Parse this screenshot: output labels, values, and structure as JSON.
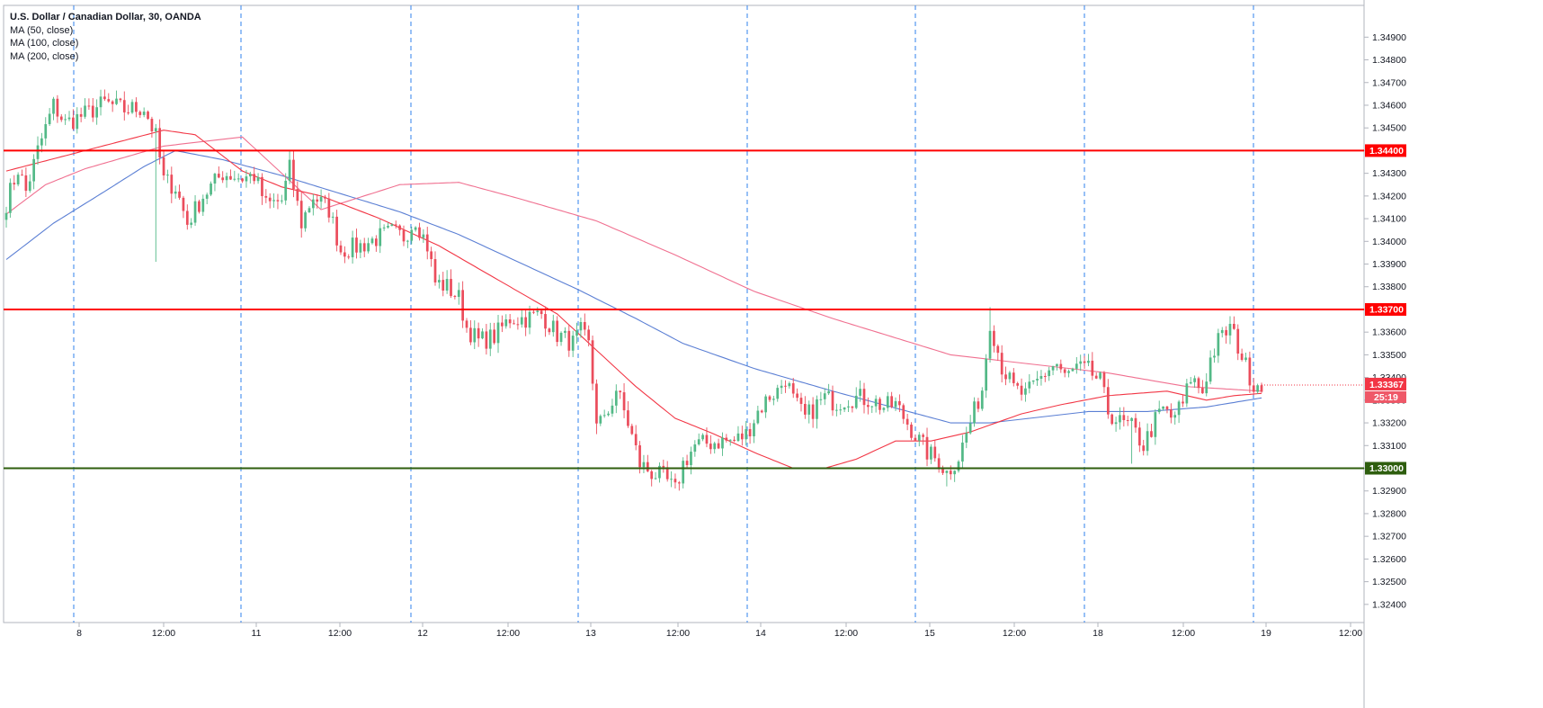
{
  "legend": {
    "title": "U.S. Dollar / Canadian Dollar, 30, OANDA",
    "ma50": "MA (50, close)",
    "ma100": "MA (100, close)",
    "ma200": "MA (200, close)"
  },
  "colors": {
    "up": "#53b987",
    "down": "#eb4d5c",
    "ma50": "#f23645",
    "ma100": "#f07090",
    "ma200": "#5b7fd4",
    "resistance": "#ff0000",
    "support": "#2e5e0e",
    "session": "#2f80ed",
    "price_tag": "#f23645",
    "countdown_tag": "#ef5868"
  },
  "chart_data": {
    "type": "candlestick",
    "symbol": "U.S. Dollar / Canadian Dollar",
    "interval": "30",
    "source": "OANDA",
    "ylim": [
      1.3232,
      1.3504
    ],
    "y_ticks": [
      "1.34900",
      "1.34800",
      "1.34700",
      "1.34600",
      "1.34500",
      "1.34400",
      "1.34300",
      "1.34200",
      "1.34100",
      "1.34000",
      "1.33900",
      "1.33800",
      "1.33700",
      "1.33600",
      "1.33500",
      "1.33400",
      "1.33300",
      "1.33200",
      "1.33100",
      "1.33000",
      "1.32900",
      "1.32800",
      "1.32700",
      "1.32600",
      "1.32500",
      "1.32400"
    ],
    "x_ticks": [
      "8",
      "12:00",
      "11",
      "12:00",
      "12",
      "12:00",
      "13",
      "12:00",
      "14",
      "12:00",
      "15",
      "12:00",
      "18",
      "12:00",
      "19",
      "12:00"
    ],
    "horizontal_levels": [
      {
        "value": 1.344,
        "label": "1.34400",
        "color": "resistance"
      },
      {
        "value": 1.337,
        "label": "1.33700",
        "color": "resistance"
      },
      {
        "value": 1.33,
        "label": "1.33000",
        "color": "support"
      }
    ],
    "last_price": "1.33367",
    "countdown": "25:19",
    "anchors": [
      [
        0,
        1.3417
      ],
      [
        3,
        1.3432
      ],
      [
        5,
        1.3422
      ],
      [
        8,
        1.344
      ],
      [
        12,
        1.346
      ],
      [
        15,
        1.3452
      ],
      [
        20,
        1.3456
      ],
      [
        25,
        1.3461
      ],
      [
        30,
        1.3458
      ],
      [
        35,
        1.3459
      ],
      [
        38,
        1.3446
      ],
      [
        40,
        1.3427
      ],
      [
        43,
        1.3424
      ],
      [
        46,
        1.3408
      ],
      [
        50,
        1.342
      ],
      [
        55,
        1.343
      ],
      [
        60,
        1.3428
      ],
      [
        63,
        1.3429
      ],
      [
        66,
        1.3416
      ],
      [
        70,
        1.3418
      ],
      [
        72,
        1.3432
      ],
      [
        75,
        1.3408
      ],
      [
        78,
        1.342
      ],
      [
        82,
        1.3414
      ],
      [
        85,
        1.3396
      ],
      [
        90,
        1.3398
      ],
      [
        95,
        1.3402
      ],
      [
        98,
        1.3404
      ],
      [
        101,
        1.3402
      ],
      [
        104,
        1.341
      ],
      [
        107,
        1.3398
      ],
      [
        109,
        1.3382
      ],
      [
        112,
        1.338
      ],
      [
        115,
        1.3375
      ],
      [
        117,
        1.3362
      ],
      [
        120,
        1.3356
      ],
      [
        124,
        1.3358
      ],
      [
        128,
        1.3366
      ],
      [
        132,
        1.3366
      ],
      [
        136,
        1.3368
      ],
      [
        140,
        1.3359
      ],
      [
        144,
        1.3355
      ],
      [
        146,
        1.336
      ],
      [
        148,
        1.3354
      ],
      [
        150,
        1.3322
      ],
      [
        152,
        1.332
      ],
      [
        155,
        1.3335
      ],
      [
        158,
        1.332
      ],
      [
        161,
        1.3302
      ],
      [
        164,
        1.3298
      ],
      [
        167,
        1.3296
      ],
      [
        170,
        1.329
      ],
      [
        172,
        1.3302
      ],
      [
        175,
        1.331
      ],
      [
        178,
        1.3311
      ],
      [
        182,
        1.3312
      ],
      [
        185,
        1.3312
      ],
      [
        188,
        1.3315
      ],
      [
        191,
        1.3325
      ],
      [
        194,
        1.3332
      ],
      [
        196,
        1.3334
      ],
      [
        198,
        1.334
      ],
      [
        200,
        1.333
      ],
      [
        203,
        1.3322
      ],
      [
        206,
        1.3328
      ],
      [
        208,
        1.3331
      ],
      [
        211,
        1.3329
      ],
      [
        214,
        1.3331
      ],
      [
        217,
        1.3331
      ],
      [
        220,
        1.333
      ],
      [
        223,
        1.3327
      ],
      [
        226,
        1.3328
      ],
      [
        229,
        1.332
      ],
      [
        232,
        1.3312
      ],
      [
        234,
        1.3307
      ],
      [
        237,
        1.3303
      ],
      [
        239,
        1.3298
      ],
      [
        242,
        1.3305
      ],
      [
        245,
        1.332
      ],
      [
        248,
        1.3335
      ],
      [
        250,
        1.3365
      ],
      [
        253,
        1.3345
      ],
      [
        256,
        1.3335
      ],
      [
        259,
        1.3332
      ],
      [
        262,
        1.3338
      ],
      [
        265,
        1.3344
      ],
      [
        267,
        1.3346
      ],
      [
        269,
        1.334
      ],
      [
        272,
        1.3344
      ],
      [
        275,
        1.3343
      ],
      [
        278,
        1.3338
      ],
      [
        280,
        1.3325
      ],
      [
        283,
        1.332
      ],
      [
        286,
        1.3318
      ],
      [
        289,
        1.331
      ],
      [
        292,
        1.3321
      ],
      [
        294,
        1.3326
      ],
      [
        296,
        1.3322
      ],
      [
        299,
        1.3328
      ],
      [
        301,
        1.334
      ],
      [
        304,
        1.3334
      ],
      [
        306,
        1.3348
      ],
      [
        308,
        1.3356
      ],
      [
        311,
        1.3362
      ],
      [
        313,
        1.3354
      ],
      [
        315,
        1.3345
      ],
      [
        317,
        1.3337
      ],
      [
        319,
        1.3338
      ]
    ],
    "ma_series": {
      "ma50": [
        [
          0,
          1.3431
        ],
        [
          20,
          1.344
        ],
        [
          40,
          1.3449
        ],
        [
          48,
          1.3447
        ],
        [
          60,
          1.3431
        ],
        [
          70,
          1.3424
        ],
        [
          80,
          1.342
        ],
        [
          95,
          1.341
        ],
        [
          110,
          1.3398
        ],
        [
          120,
          1.3388
        ],
        [
          130,
          1.3378
        ],
        [
          140,
          1.3368
        ],
        [
          150,
          1.3352
        ],
        [
          160,
          1.3336
        ],
        [
          170,
          1.3322
        ],
        [
          180,
          1.3315
        ],
        [
          190,
          1.3307
        ],
        [
          200,
          1.33
        ],
        [
          208,
          1.33
        ],
        [
          216,
          1.3304
        ],
        [
          226,
          1.3312
        ],
        [
          235,
          1.3312
        ],
        [
          245,
          1.3316
        ],
        [
          258,
          1.3324
        ],
        [
          268,
          1.3328
        ],
        [
          280,
          1.3332
        ],
        [
          295,
          1.3334
        ],
        [
          305,
          1.333
        ],
        [
          312,
          1.3332
        ],
        [
          319,
          1.3333
        ]
      ],
      "ma100": [
        [
          0,
          1.3412
        ],
        [
          10,
          1.3425
        ],
        [
          20,
          1.3432
        ],
        [
          40,
          1.3442
        ],
        [
          60,
          1.3446
        ],
        [
          80,
          1.3414
        ],
        [
          100,
          1.3425
        ],
        [
          115,
          1.3426
        ],
        [
          130,
          1.3419
        ],
        [
          150,
          1.3409
        ],
        [
          170,
          1.3394
        ],
        [
          190,
          1.3378
        ],
        [
          210,
          1.3366
        ],
        [
          225,
          1.3358
        ],
        [
          240,
          1.335
        ],
        [
          260,
          1.3346
        ],
        [
          280,
          1.3342
        ],
        [
          300,
          1.3336
        ],
        [
          319,
          1.3334
        ]
      ],
      "ma200": [
        [
          0,
          1.3392
        ],
        [
          12,
          1.3408
        ],
        [
          25,
          1.3422
        ],
        [
          35,
          1.3433
        ],
        [
          43,
          1.344
        ],
        [
          55,
          1.3436
        ],
        [
          70,
          1.3429
        ],
        [
          85,
          1.3421
        ],
        [
          100,
          1.3413
        ],
        [
          115,
          1.3403
        ],
        [
          130,
          1.3391
        ],
        [
          145,
          1.3379
        ],
        [
          160,
          1.3366
        ],
        [
          172,
          1.3355
        ],
        [
          190,
          1.3344
        ],
        [
          210,
          1.3334
        ],
        [
          225,
          1.3327
        ],
        [
          240,
          1.332
        ],
        [
          250,
          1.332
        ],
        [
          260,
          1.3322
        ],
        [
          275,
          1.3325
        ],
        [
          290,
          1.3325
        ],
        [
          305,
          1.3327
        ],
        [
          319,
          1.3331
        ]
      ]
    }
  }
}
